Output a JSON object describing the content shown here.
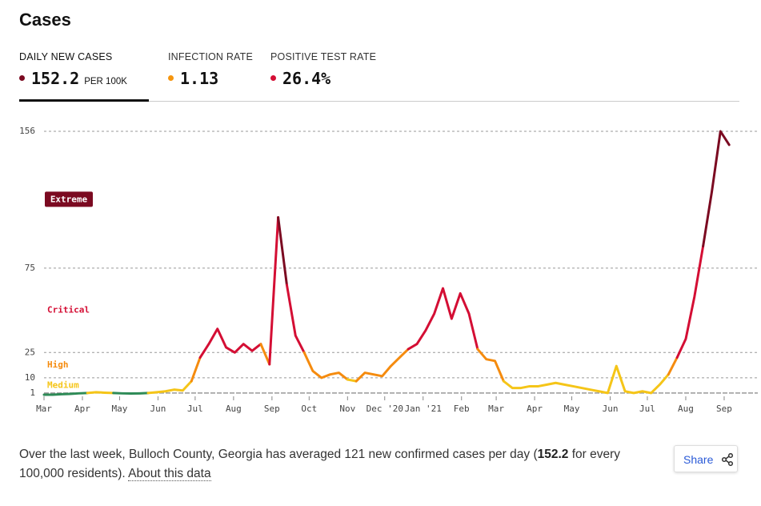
{
  "header": {
    "title": "Cases"
  },
  "tabs": [
    {
      "label": "DAILY NEW CASES",
      "value": "152.2",
      "unit": "PER 100K",
      "color": "#7b0a21"
    },
    {
      "label": "INFECTION RATE",
      "value": "1.13",
      "color": "#f5950e"
    },
    {
      "label": "POSITIVE TEST RATE",
      "value": "26.4%",
      "color": "#d40e34"
    }
  ],
  "chart_data": {
    "type": "line",
    "x": [
      0,
      7,
      14,
      21,
      28,
      35,
      42,
      49,
      56,
      63,
      70,
      77,
      84,
      91,
      98,
      105,
      112,
      119,
      126,
      133,
      140,
      147,
      154,
      161,
      168,
      175,
      182,
      189,
      196,
      203,
      210,
      217,
      224,
      231,
      238,
      245,
      252,
      259,
      266,
      273,
      280,
      287,
      294,
      301,
      308,
      315,
      322,
      329,
      336,
      343,
      350,
      357,
      364,
      371,
      378,
      385,
      392,
      399,
      406,
      413,
      420,
      427,
      434,
      441,
      448,
      455,
      462,
      469,
      476,
      483,
      490,
      497,
      504,
      511,
      518,
      525,
      532,
      539,
      546,
      553
    ],
    "series": [
      {
        "name": "Daily new cases per 100K",
        "values": [
          0,
          0,
          0.3,
          0.5,
          0.8,
          1,
          1.5,
          1.2,
          1,
          0.8,
          0.7,
          0.8,
          1,
          1.5,
          2,
          3,
          2.5,
          8,
          22,
          30,
          39,
          28,
          25,
          30,
          26,
          30,
          18,
          105,
          65,
          35,
          25,
          14,
          10,
          12,
          13,
          9,
          8,
          13,
          12,
          11,
          17,
          22,
          27,
          30,
          38,
          48,
          63,
          45,
          60,
          48,
          27,
          21,
          20,
          8,
          4,
          4,
          5,
          5,
          6,
          7,
          6,
          5,
          4,
          3,
          2,
          1,
          17,
          2,
          1,
          2,
          1,
          6,
          12,
          22,
          33,
          58,
          88,
          120,
          156,
          148
        ]
      }
    ],
    "xlim": [
      0,
      560
    ],
    "xticks": [
      {
        "value": 0,
        "label": "Mar"
      },
      {
        "value": 31,
        "label": "Apr"
      },
      {
        "value": 61,
        "label": "May"
      },
      {
        "value": 92,
        "label": "Jun"
      },
      {
        "value": 122,
        "label": "Jul"
      },
      {
        "value": 153,
        "label": "Aug"
      },
      {
        "value": 184,
        "label": "Sep"
      },
      {
        "value": 214,
        "label": "Oct"
      },
      {
        "value": 245,
        "label": "Nov"
      },
      {
        "value": 275,
        "label": "Dec '20"
      },
      {
        "value": 306,
        "label": "Jan '21"
      },
      {
        "value": 337,
        "label": "Feb"
      },
      {
        "value": 365,
        "label": "Mar"
      },
      {
        "value": 396,
        "label": "Apr"
      },
      {
        "value": 426,
        "label": "May"
      },
      {
        "value": 457,
        "label": "Jun"
      },
      {
        "value": 487,
        "label": "Jul"
      },
      {
        "value": 518,
        "label": "Aug"
      },
      {
        "value": 549,
        "label": "Sep"
      }
    ],
    "ylim": [
      0,
      156
    ],
    "yticks": [
      1,
      10,
      25,
      75,
      156
    ],
    "grid": true,
    "level_colors": [
      "#2e8b57",
      "#f5c518",
      "#f58b0e",
      "#d40e34",
      "#7b0a21"
    ],
    "levels": [
      "Medium",
      "High",
      "Critical",
      "Extreme"
    ]
  },
  "footer": {
    "text": [
      "Over the last week, Bulloch County, Georgia has averaged 121 new confirmed cases per day (",
      "152.2",
      " for every 100,000 residents). "
    ],
    "link": "About this data",
    "share": "Share"
  }
}
